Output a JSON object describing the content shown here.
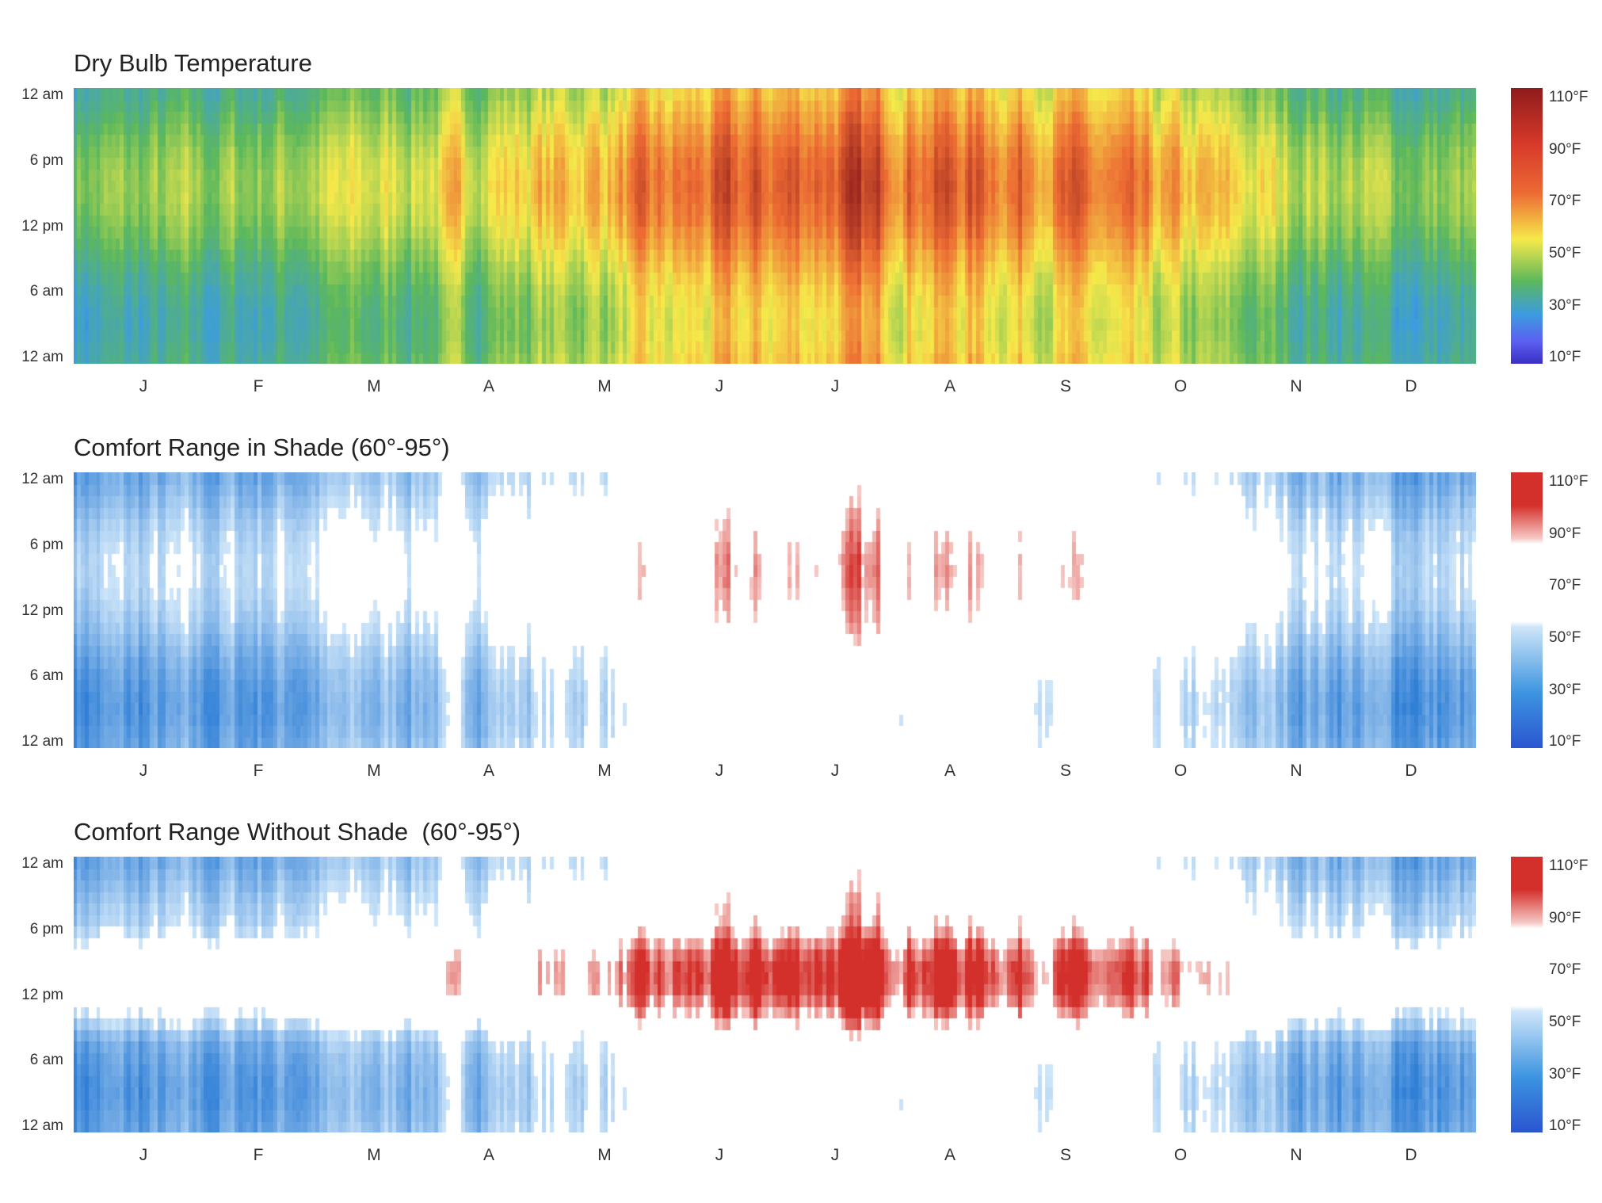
{
  "chart_data": [
    {
      "type": "heatmap",
      "title": "Dry Bulb Temperature",
      "variant": "temperature",
      "x_tick_labels": [
        "J",
        "F",
        "M",
        "A",
        "M",
        "J",
        "J",
        "A",
        "S",
        "O",
        "N",
        "D"
      ],
      "y_tick_labels": [
        "12 am",
        "6 pm",
        "12 pm",
        "6 am",
        "12 am"
      ],
      "x_unit": "day of year",
      "y_unit": "hour of day (top = midnight, bottom = midnight)",
      "legend_labels": [
        "110°F",
        "90°F",
        "70°F",
        "50°F",
        "30°F",
        "10°F"
      ],
      "color_range": [
        0,
        115
      ],
      "colors": {
        "v10": "#3a2fc4",
        "v30": "#3c9ce0",
        "v50": "#5cb85c",
        "v70": "#f6e94a",
        "v90": "#ec6a33",
        "v110": "#8e1b1b"
      },
      "monthly_mean_temp_f": [
        45,
        48,
        56,
        62,
        70,
        80,
        85,
        84,
        78,
        66,
        55,
        46
      ],
      "daily_swing_f": 20
    },
    {
      "type": "heatmap",
      "title": "Comfort Range in Shade (60°-95°)",
      "variant": "shade",
      "x_tick_labels": [
        "J",
        "F",
        "M",
        "A",
        "M",
        "J",
        "J",
        "A",
        "S",
        "O",
        "N",
        "D"
      ],
      "y_tick_labels": [
        "12 am",
        "6 pm",
        "12 pm",
        "6 am",
        "12 am"
      ],
      "legend_labels": [
        "110°F",
        "90°F",
        "70°F",
        "50°F",
        "30°F",
        "10°F"
      ],
      "comfort_range_f": [
        60,
        95
      ],
      "colors": {
        "cold_light": "#cfe6f9",
        "cold_dark": "#2f7fd6",
        "hot_light": "#f6c9c5",
        "hot_dark": "#d4302b",
        "comfort": "#ffffff"
      }
    },
    {
      "type": "heatmap",
      "title": "Comfort Range Without Shade  (60°-95°)",
      "variant": "sun",
      "x_tick_labels": [
        "J",
        "F",
        "M",
        "A",
        "M",
        "J",
        "J",
        "A",
        "S",
        "O",
        "N",
        "D"
      ],
      "y_tick_labels": [
        "12 am",
        "6 pm",
        "12 pm",
        "6 am",
        "12 am"
      ],
      "legend_labels": [
        "110°F",
        "90°F",
        "70°F",
        "50°F",
        "30°F",
        "10°F"
      ],
      "comfort_range_f": [
        60,
        95
      ],
      "solar_gain_f": 18,
      "colors": {
        "cold_light": "#cfe6f9",
        "cold_dark": "#2f7fd6",
        "hot_light": "#f6c9c5",
        "hot_dark": "#d4302b",
        "comfort": "#ffffff"
      }
    }
  ]
}
